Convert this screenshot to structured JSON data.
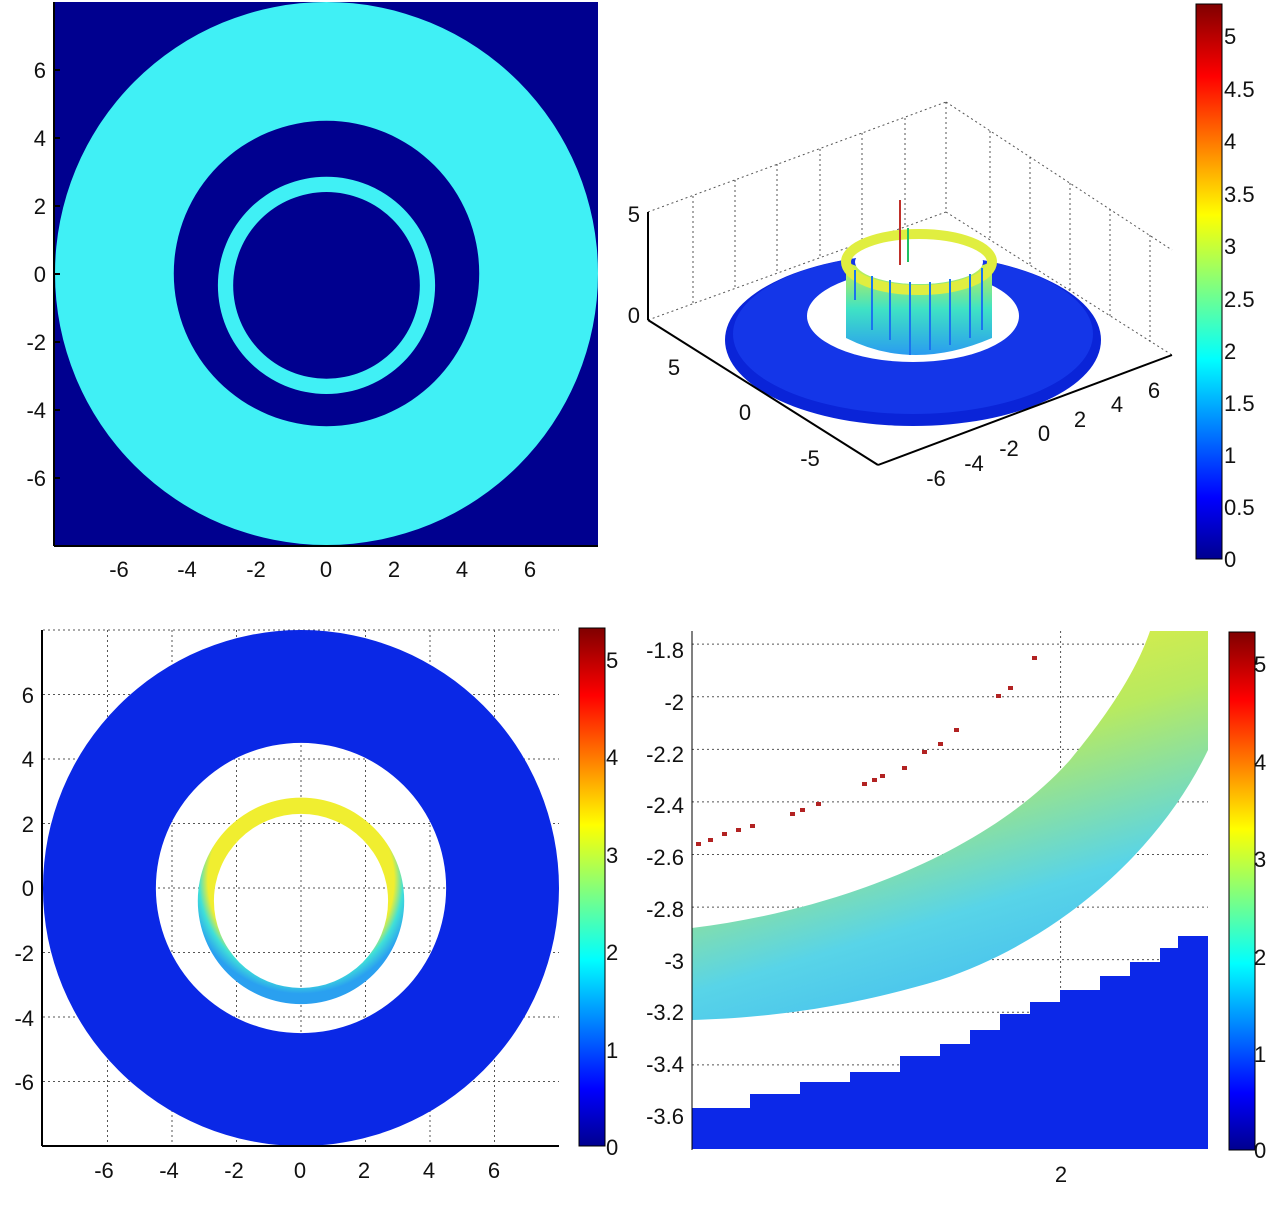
{
  "colors": {
    "dark_navy": "#00008f",
    "cyan": "#40f0f5",
    "blue": "#0a28e6",
    "background": "#ffffff"
  },
  "colormap": "jet",
  "chart_data": [
    {
      "id": "top-left",
      "type": "heatmap",
      "view": "2d",
      "description_key": "binary annular field",
      "xlim": [
        -8,
        8
      ],
      "ylim": [
        -8,
        8
      ],
      "xticks": [
        "-6",
        "-4",
        "-2",
        "0",
        "2",
        "4",
        "6"
      ],
      "yticks": [
        "6",
        "4",
        "2",
        "0",
        "-2",
        "-4",
        "-6"
      ],
      "background_color": "#00008f",
      "rings": [
        {
          "cx": 0,
          "cy": 0,
          "r_outer": 8.0,
          "r_inner": 4.5,
          "color": "#40f0f5"
        },
        {
          "cx": 0,
          "cy": -0.35,
          "r_outer": 3.2,
          "r_inner": 2.75,
          "color": "#40f0f5"
        }
      ],
      "grid": false
    },
    {
      "id": "top-right",
      "type": "surface",
      "view": "3d",
      "xlim": [
        -8,
        8
      ],
      "ylim": [
        -8,
        8
      ],
      "zlim": [
        0,
        5
      ],
      "xticks": [
        "-6",
        "-4",
        "-2",
        "0",
        "2",
        "4",
        "6"
      ],
      "yticks": [
        "5",
        "0",
        "-5"
      ],
      "zticks": [
        "5",
        "0"
      ],
      "colorbar": {
        "min": 0,
        "max": 5.3,
        "ticks": [
          "5",
          "4.5",
          "4",
          "3.5",
          "3",
          "2.5",
          "2",
          "1.5",
          "1",
          "0.5",
          "0"
        ]
      },
      "surface_levels": {
        "outer_ring": 0.4,
        "inner_wall_min": 1.8,
        "inner_wall_max": 3.6,
        "spike_max": 5.0
      },
      "grid": true
    },
    {
      "id": "bottom-left",
      "type": "heatmap",
      "view": "2d",
      "xlim": [
        -8,
        8
      ],
      "ylim": [
        -8,
        8
      ],
      "xticks": [
        "-6",
        "-4",
        "-2",
        "0",
        "2",
        "4",
        "6"
      ],
      "yticks": [
        "6",
        "4",
        "2",
        "0",
        "-2",
        "-4",
        "-6"
      ],
      "colorbar": {
        "min": 0,
        "max": 5.3,
        "ticks": [
          "5",
          "4",
          "3",
          "2",
          "1",
          "0"
        ]
      },
      "rings": [
        {
          "cx": 0,
          "cy": 0,
          "r_outer": 8.0,
          "r_inner": 4.5,
          "value": 0.45
        },
        {
          "cx": 0,
          "cy": -0.4,
          "r_outer": 3.2,
          "r_inner": 2.7,
          "value_min": 1.5,
          "value_max": 3.2
        }
      ],
      "grid": true
    },
    {
      "id": "bottom-right",
      "type": "heatmap",
      "view": "2d-zoom",
      "xlim": [
        1.0,
        2.4
      ],
      "ylim": [
        -3.72,
        -1.75
      ],
      "xticks": [
        "2"
      ],
      "yticks": [
        "-1.8",
        "-2",
        "-2.2",
        "-2.4",
        "-2.6",
        "-2.8",
        "-3",
        "-3.2",
        "-3.4",
        "-3.6"
      ],
      "colorbar": {
        "min": 0,
        "max": 5.3,
        "ticks": [
          "5",
          "4",
          "3",
          "2",
          "1",
          "0"
        ]
      },
      "band_value_range": [
        1.5,
        3.3
      ],
      "lower_region_value": 0.45,
      "outlier_value": 5.0,
      "grid": true
    }
  ]
}
